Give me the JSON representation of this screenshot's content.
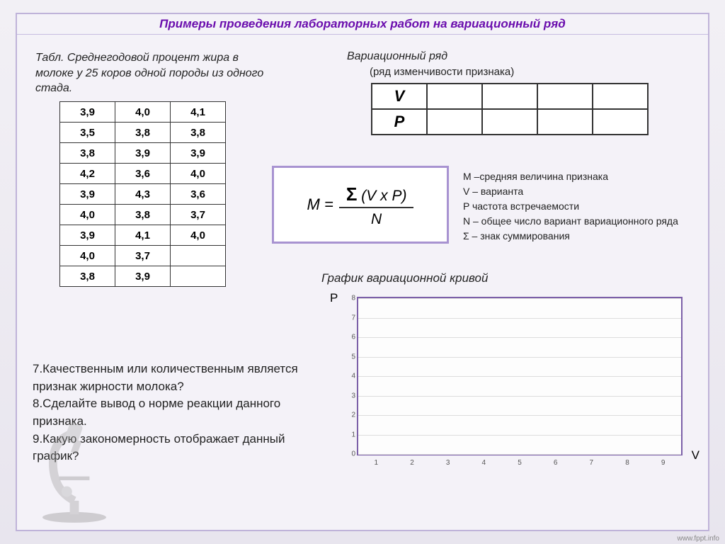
{
  "title": "Примеры проведения лабораторных работ на вариационный ряд",
  "caption1": "Табл. Среднегодовой процент жира в молоке у 25 коров одной породы из одного стада.",
  "caption2": "Вариационный ряд",
  "caption2_sub": "(ряд изменчивости признака)",
  "data_rows": [
    [
      "3,9",
      "4,0",
      "4,1"
    ],
    [
      "3,5",
      "3,8",
      "3,8"
    ],
    [
      "3,8",
      "3,9",
      "3,9"
    ],
    [
      "4,2",
      "3,6",
      "4,0"
    ],
    [
      "3,9",
      "4,3",
      "3,6"
    ],
    [
      "4,0",
      "3,8",
      "3,7"
    ],
    [
      "3,9",
      "4,1",
      "4,0"
    ],
    [
      "4,0",
      "3,7",
      ""
    ],
    [
      "3,8",
      "3,9",
      ""
    ]
  ],
  "vp_rows": [
    "V",
    "P"
  ],
  "vp_cols": 4,
  "formula": {
    "lhs": "M =",
    "sigma": "Ʃ",
    "num_rest": " (V x P)",
    "den": "N"
  },
  "legend": {
    "m": "М –средняя величина признака",
    "v": "V – варианта",
    "p": "P частота встречаемости",
    "n": "N – общее число вариант вариационного ряда",
    "s": "Ʃ – знак суммирования"
  },
  "graph": {
    "title": "График вариационной кривой",
    "y_label": "P",
    "x_label": "V",
    "y_ticks": [
      0,
      1,
      2,
      3,
      4,
      5,
      6,
      7,
      8
    ],
    "x_ticks": [
      1,
      2,
      3,
      4,
      5,
      6,
      7,
      8,
      9
    ],
    "border_color": "#7b5fa8",
    "grid_color": "#dddddd",
    "background": "#fdfdfd"
  },
  "questions": {
    "q7": "7.Качественным или количественным является признак жирности молока?",
    "q8": "8.Сделайте вывод о норме реакции данного признака.",
    "q9": "9.Какую закономерность отображает данный график?"
  },
  "footer": "www.fppt.info"
}
